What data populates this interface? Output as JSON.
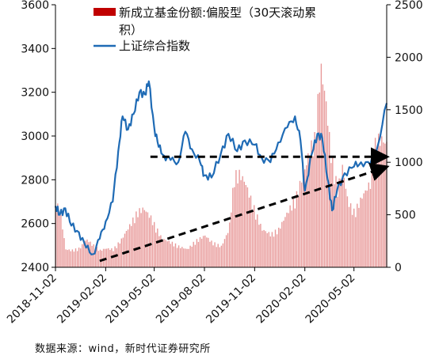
{
  "source_note": "数据来源：wind，新时代证券研究所",
  "chart_data": {
    "type": "bar+line",
    "x_ticks": [
      "2018-11-02",
      "2019-02-02",
      "2019-05-02",
      "2019-08-02",
      "2019-11-02",
      "2020-02-02",
      "2020-05-02"
    ],
    "x_range": [
      "2018-11-02",
      "2020-07-01"
    ],
    "y_left": {
      "ticks": [
        2400,
        2600,
        2800,
        3000,
        3200,
        3400,
        3600
      ],
      "range": [
        2400,
        3600
      ]
    },
    "y_right": {
      "ticks": [
        0,
        500,
        1000,
        1500,
        2000,
        2500
      ],
      "range": [
        0,
        2500
      ]
    },
    "grid": false,
    "legend_position": "top",
    "series": [
      {
        "name": "新成立基金份额:偏股型（30天滚动累积）",
        "legend_lines": [
          "新成立基金份额:偏股型（30天滚动累",
          "积）"
        ],
        "kind": "bar",
        "axis": "right",
        "color": "#c00000",
        "points": [
          [
            "2018-11-02",
            650
          ],
          [
            "2018-11-10",
            540
          ],
          [
            "2018-11-20",
            180
          ],
          [
            "2018-12-01",
            170
          ],
          [
            "2018-12-15",
            190
          ],
          [
            "2018-12-28",
            280
          ],
          [
            "2019-01-10",
            220
          ],
          [
            "2019-01-22",
            170
          ],
          [
            "2019-02-02",
            190
          ],
          [
            "2019-02-15",
            180
          ],
          [
            "2019-03-01",
            270
          ],
          [
            "2019-03-15",
            400
          ],
          [
            "2019-04-01",
            560
          ],
          [
            "2019-04-12",
            590
          ],
          [
            "2019-04-25",
            500
          ],
          [
            "2019-05-02",
            420
          ],
          [
            "2019-05-15",
            290
          ],
          [
            "2019-06-01",
            250
          ],
          [
            "2019-06-15",
            210
          ],
          [
            "2019-07-01",
            180
          ],
          [
            "2019-07-15",
            260
          ],
          [
            "2019-08-02",
            320
          ],
          [
            "2019-08-15",
            250
          ],
          [
            "2019-09-01",
            210
          ],
          [
            "2019-09-15",
            380
          ],
          [
            "2019-09-25",
            920
          ],
          [
            "2019-10-05",
            940
          ],
          [
            "2019-10-15",
            850
          ],
          [
            "2019-11-02",
            560
          ],
          [
            "2019-11-15",
            380
          ],
          [
            "2019-12-01",
            330
          ],
          [
            "2019-12-15",
            380
          ],
          [
            "2020-01-01",
            560
          ],
          [
            "2020-01-15",
            690
          ],
          [
            "2020-01-25",
            870
          ],
          [
            "2020-02-02",
            1000
          ],
          [
            "2020-02-10",
            1180
          ],
          [
            "2020-02-20",
            1300
          ],
          [
            "2020-03-01",
            2020
          ],
          [
            "2020-03-10",
            1700
          ],
          [
            "2020-03-20",
            1140
          ],
          [
            "2020-04-01",
            780
          ],
          [
            "2020-04-10",
            1010
          ],
          [
            "2020-04-20",
            660
          ],
          [
            "2020-05-02",
            550
          ],
          [
            "2020-05-15",
            700
          ],
          [
            "2020-06-01",
            860
          ],
          [
            "2020-06-10",
            1280
          ],
          [
            "2020-06-20",
            1290
          ],
          [
            "2020-07-01",
            1230
          ]
        ]
      },
      {
        "name": "上证综合指数",
        "kind": "line",
        "axis": "left",
        "color": "#1f6bb5",
        "points": [
          [
            "2018-11-02",
            2680
          ],
          [
            "2018-11-10",
            2640
          ],
          [
            "2018-11-20",
            2670
          ],
          [
            "2018-12-01",
            2590
          ],
          [
            "2018-12-15",
            2560
          ],
          [
            "2018-12-28",
            2490
          ],
          [
            "2019-01-10",
            2460
          ],
          [
            "2019-01-22",
            2530
          ],
          [
            "2019-02-02",
            2610
          ],
          [
            "2019-02-15",
            2700
          ],
          [
            "2019-02-25",
            2930
          ],
          [
            "2019-03-05",
            3090
          ],
          [
            "2019-03-15",
            3030
          ],
          [
            "2019-03-25",
            3100
          ],
          [
            "2019-04-05",
            3200
          ],
          [
            "2019-04-15",
            3190
          ],
          [
            "2019-04-22",
            3250
          ],
          [
            "2019-05-02",
            3040
          ],
          [
            "2019-05-10",
            2950
          ],
          [
            "2019-05-20",
            2910
          ],
          [
            "2019-06-01",
            2890
          ],
          [
            "2019-06-15",
            2880
          ],
          [
            "2019-06-28",
            3020
          ],
          [
            "2019-07-10",
            2940
          ],
          [
            "2019-07-25",
            2880
          ],
          [
            "2019-08-02",
            2820
          ],
          [
            "2019-08-15",
            2810
          ],
          [
            "2019-09-01",
            2920
          ],
          [
            "2019-09-15",
            3010
          ],
          [
            "2019-10-01",
            2930
          ],
          [
            "2019-10-15",
            2980
          ],
          [
            "2019-11-02",
            2960
          ],
          [
            "2019-11-15",
            2900
          ],
          [
            "2019-12-01",
            2880
          ],
          [
            "2019-12-15",
            2970
          ],
          [
            "2020-01-01",
            3040
          ],
          [
            "2020-01-15",
            3090
          ],
          [
            "2020-01-25",
            2980
          ],
          [
            "2020-02-02",
            2750
          ],
          [
            "2020-02-15",
            2920
          ],
          [
            "2020-02-25",
            3010
          ],
          [
            "2020-03-05",
            2990
          ],
          [
            "2020-03-15",
            2800
          ],
          [
            "2020-03-23",
            2660
          ],
          [
            "2020-04-01",
            2750
          ],
          [
            "2020-04-15",
            2830
          ],
          [
            "2020-05-02",
            2860
          ],
          [
            "2020-05-15",
            2880
          ],
          [
            "2020-06-01",
            2870
          ],
          [
            "2020-06-15",
            2960
          ],
          [
            "2020-07-01",
            3150
          ]
        ]
      }
    ],
    "annotations": [
      {
        "kind": "arrow",
        "style": "dashed",
        "from": [
          "2019-04-25",
          2905
        ],
        "to": [
          "2020-06-28",
          2905
        ],
        "axis": "left"
      },
      {
        "kind": "arrow",
        "style": "dashed",
        "from": [
          "2019-01-22",
          60
        ],
        "to": [
          "2020-06-28",
          950
        ],
        "axis": "right"
      }
    ]
  }
}
